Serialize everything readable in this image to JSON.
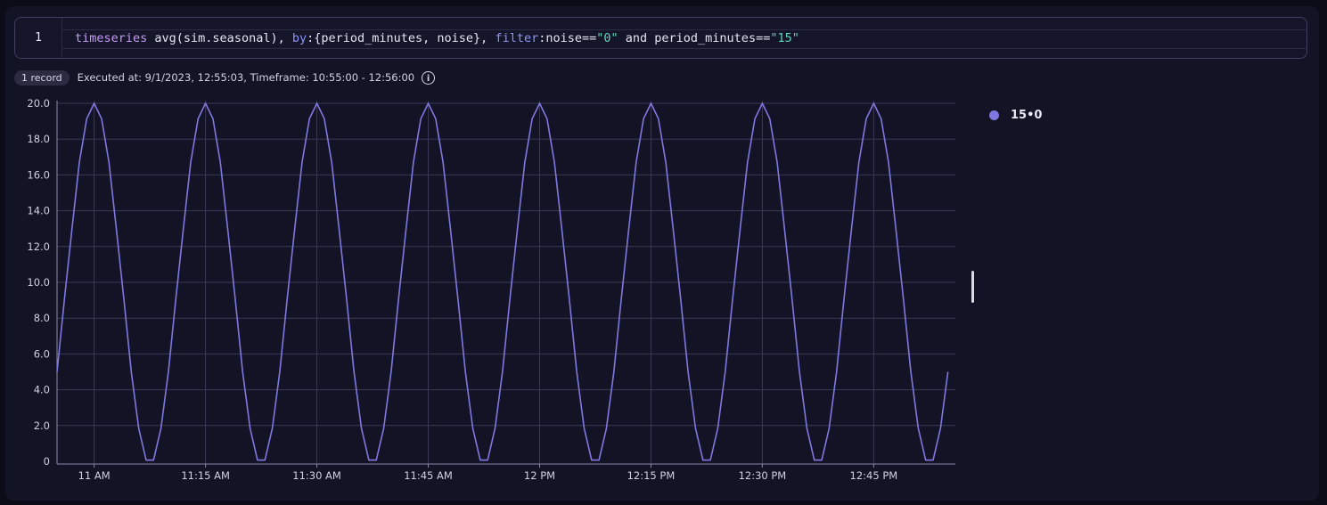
{
  "editor": {
    "line_number": "1",
    "tokens": [
      {
        "text": "timeseries",
        "kind": "kw"
      },
      {
        "text": " avg(sim.seasonal), ",
        "kind": "plain"
      },
      {
        "text": "by",
        "kind": "param"
      },
      {
        "text": ":{period_minutes, noise}, ",
        "kind": "plain"
      },
      {
        "text": "filter",
        "kind": "param"
      },
      {
        "text": ":noise==",
        "kind": "plain"
      },
      {
        "text": "\"0\"",
        "kind": "str"
      },
      {
        "text": " and period_minutes==",
        "kind": "plain"
      },
      {
        "text": "\"15\"",
        "kind": "str"
      }
    ]
  },
  "status": {
    "records_badge": "1 record",
    "executed_text": "Executed at: 9/1/2023, 12:55:03, Timeframe: 10:55:00 - 12:56:00",
    "info_icon": "info-icon",
    "info_glyph": "i"
  },
  "colors": {
    "series": "#7f78e0",
    "grid": "#3a3a56",
    "axis_text": "#cfd0e2"
  },
  "chart_data": {
    "type": "line",
    "xlabel": "",
    "ylabel": "",
    "ylim": [
      0,
      20
    ],
    "y_ticks": [
      "0",
      "2.0",
      "4.0",
      "6.0",
      "8.0",
      "10.0",
      "12.0",
      "14.0",
      "16.0",
      "18.0",
      "20.0"
    ],
    "x_range": [
      "10:55",
      "12:56"
    ],
    "x_ticks": [
      {
        "time": "11:00",
        "label": "11 AM"
      },
      {
        "time": "11:15",
        "label": "11:15 AM"
      },
      {
        "time": "11:30",
        "label": "11:30 AM"
      },
      {
        "time": "11:45",
        "label": "11:45 AM"
      },
      {
        "time": "12:00",
        "label": "12 PM"
      },
      {
        "time": "12:15",
        "label": "12:15 PM"
      },
      {
        "time": "12:30",
        "label": "12:30 PM"
      },
      {
        "time": "12:45",
        "label": "12:45 PM"
      }
    ],
    "grid": true,
    "legend_position": "right",
    "series": [
      {
        "name": "15•0",
        "start_time": "10:55",
        "interval_minutes": 1,
        "values": [
          5.0,
          9.07,
          12.94,
          16.69,
          19.14,
          20.0,
          19.14,
          16.69,
          12.94,
          9.07,
          5.0,
          1.85,
          0.07,
          0.07,
          1.85,
          5.0,
          9.07,
          12.94,
          16.69,
          19.14,
          20.0,
          19.14,
          16.69,
          12.94,
          9.07,
          5.0,
          1.85,
          0.07,
          0.07,
          1.85,
          5.0,
          9.07,
          12.94,
          16.69,
          19.14,
          20.0,
          19.14,
          16.69,
          12.94,
          9.07,
          5.0,
          1.85,
          0.07,
          0.07,
          1.85,
          5.0,
          9.07,
          12.94,
          16.69,
          19.14,
          20.0,
          19.14,
          16.69,
          12.94,
          9.07,
          5.0,
          1.85,
          0.07,
          0.07,
          1.85,
          5.0,
          9.07,
          12.94,
          16.69,
          19.14,
          20.0,
          19.14,
          16.69,
          12.94,
          9.07,
          5.0,
          1.85,
          0.07,
          0.07,
          1.85,
          5.0,
          9.07,
          12.94,
          16.69,
          19.14,
          20.0,
          19.14,
          16.69,
          12.94,
          9.07,
          5.0,
          1.85,
          0.07,
          0.07,
          1.85,
          5.0,
          9.07,
          12.94,
          16.69,
          19.14,
          20.0,
          19.14,
          16.69,
          12.94,
          9.07,
          5.0,
          1.85,
          0.07,
          0.07,
          1.85,
          5.0,
          9.07,
          12.94,
          16.69,
          19.14,
          20.0,
          19.14,
          16.69,
          12.94,
          9.07,
          5.0,
          1.85,
          0.07,
          0.07,
          1.85,
          5.0
        ]
      }
    ]
  }
}
